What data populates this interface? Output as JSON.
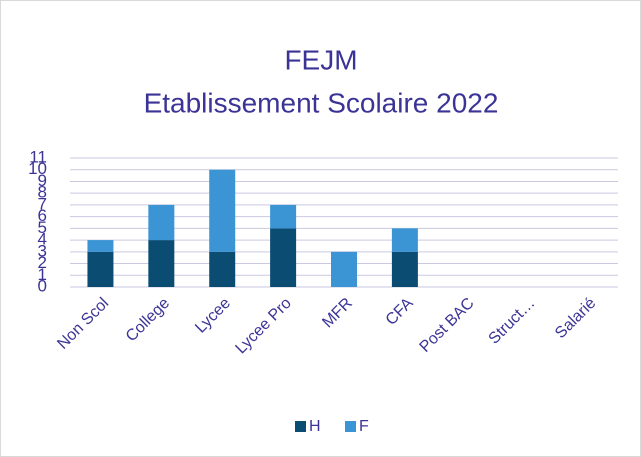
{
  "chart_data": {
    "type": "stacked_bar",
    "title": "FEJM",
    "subtitle": "Etablissement Scolaire 2022",
    "categories": [
      "Non Scol",
      "College",
      "Lycee",
      "Lycee Pro",
      "MFR",
      "CFA",
      "Post BAC",
      "Struct…",
      "Salarié"
    ],
    "series": [
      {
        "name": "H",
        "color": "#0b4d72",
        "values": [
          3,
          4,
          3,
          5,
          0,
          3,
          0,
          0,
          0
        ]
      },
      {
        "name": "F",
        "color": "#3b95d5",
        "values": [
          1,
          3,
          7,
          2,
          3,
          2,
          0,
          0,
          0
        ]
      }
    ],
    "ylim": [
      0,
      11
    ],
    "yticks": [
      0,
      1,
      2,
      3,
      4,
      5,
      6,
      7,
      8,
      9,
      10,
      11
    ],
    "grid": true,
    "legend": "bottom"
  }
}
